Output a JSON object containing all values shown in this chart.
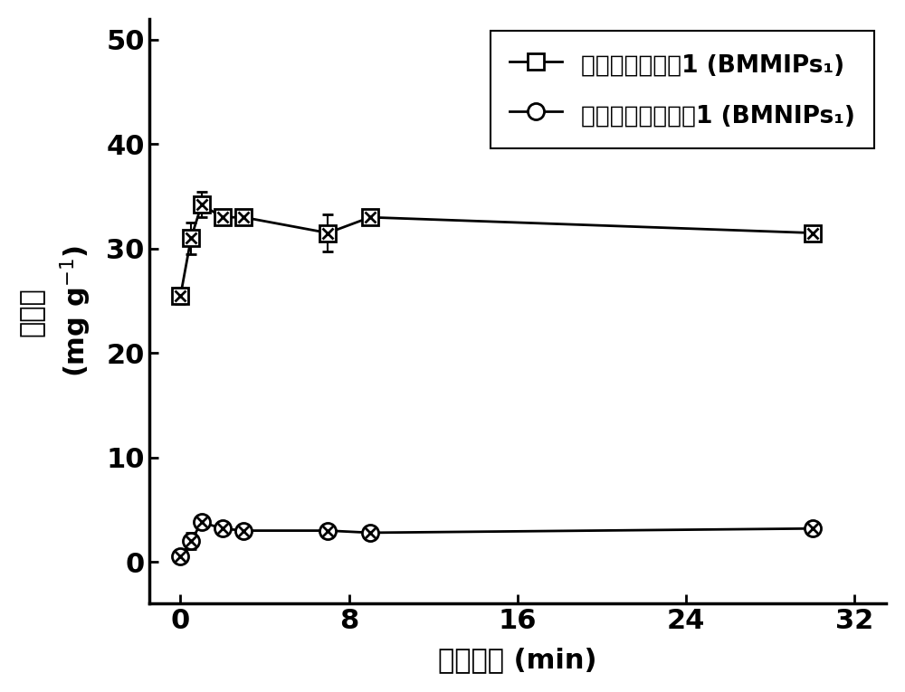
{
  "xlabel": "吸附时间 (min)",
  "ylabel_chinese": "吸附量",
  "ylabel_unit": "(mg g$^{-1}$)",
  "xlim": [
    -1.5,
    33.5
  ],
  "ylim": [
    -4,
    52
  ],
  "xticks": [
    0,
    8,
    16,
    24,
    32
  ],
  "yticks": [
    0,
    10,
    20,
    30,
    40,
    50
  ],
  "legend1": "磁性印迹聚合甩1 (BMMIPs₁)",
  "legend2": "磁性非印迹聚合甩1 (BMNIPs₁)",
  "mip_x": [
    0,
    0.5,
    1,
    2,
    3,
    7,
    9,
    30
  ],
  "mip_y": [
    25.5,
    31.0,
    34.2,
    33.0,
    33.0,
    31.5,
    33.0,
    31.5
  ],
  "mip_yerr": [
    0.8,
    1.5,
    1.2,
    0.5,
    0.5,
    1.8,
    0.6,
    0.5
  ],
  "nip_x": [
    0,
    0.5,
    1,
    2,
    3,
    7,
    9,
    30
  ],
  "nip_y": [
    0.5,
    2.0,
    3.8,
    3.2,
    3.0,
    3.0,
    2.8,
    3.2
  ],
  "nip_yerr": [
    0.3,
    0.8,
    0.6,
    0.4,
    0.3,
    0.3,
    0.3,
    0.4
  ],
  "line_color": "#000000",
  "background_color": "#ffffff",
  "font_size": 22,
  "tick_font_size": 22,
  "legend_font_size": 19,
  "lw": 2.0,
  "ms": 13
}
